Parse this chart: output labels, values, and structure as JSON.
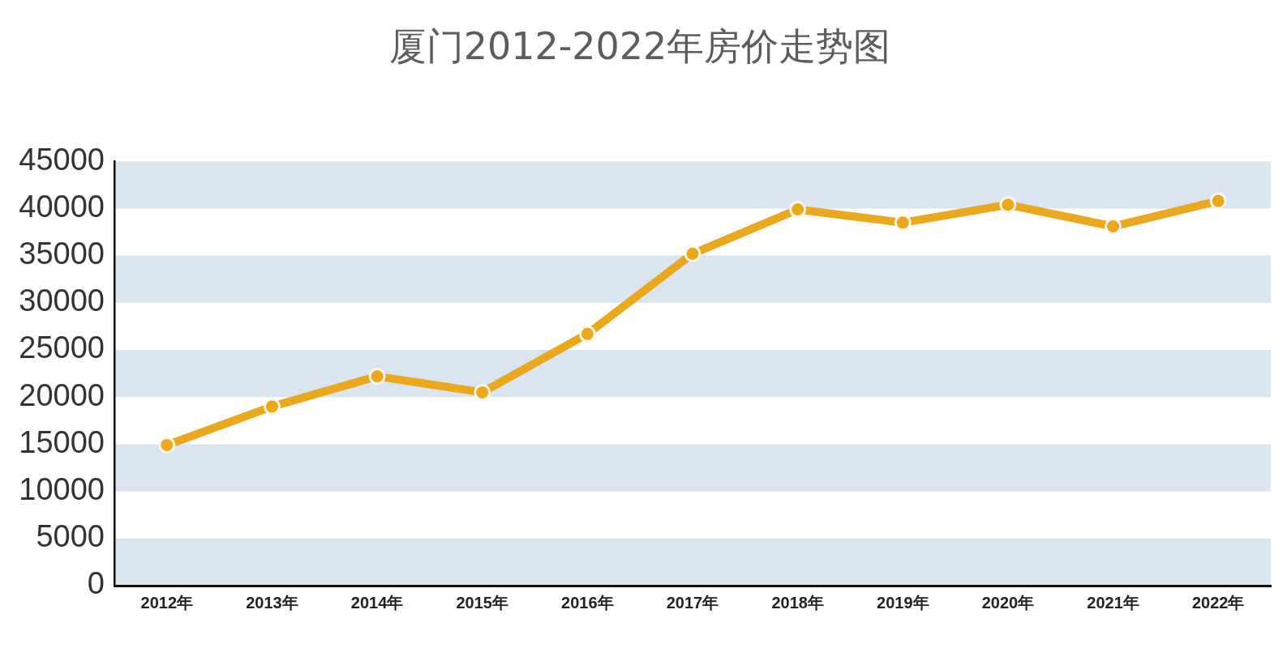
{
  "chart_data": {
    "type": "line",
    "title": "厦门2012-2022年房价走势图",
    "categories": [
      "2012年",
      "2013年",
      "2014年",
      "2015年",
      "2016年",
      "2017年",
      "2018年",
      "2019年",
      "2020年",
      "2021年",
      "2022年"
    ],
    "values": [
      14900,
      19000,
      22200,
      20500,
      26700,
      35200,
      39900,
      38500,
      40400,
      38100,
      40800
    ],
    "color": "#eba81e",
    "ylim": [
      0,
      45000
    ],
    "yticks": [
      0,
      5000,
      10000,
      15000,
      20000,
      25000,
      30000,
      35000,
      40000,
      45000
    ],
    "bands": [
      {
        "axis": "y",
        "from": 0,
        "to": 5000,
        "color": "#dae5f0"
      },
      {
        "axis": "y",
        "from": 10000,
        "to": 15000,
        "color": "#dae5f0"
      },
      {
        "axis": "y",
        "from": 20000,
        "to": 25000,
        "color": "#dae5f0"
      },
      {
        "axis": "y",
        "from": 30000,
        "to": 35000,
        "color": "#dae5f0"
      },
      {
        "axis": "y",
        "from": 40000,
        "to": 45000,
        "color": "#dae5f0"
      }
    ],
    "legend": false,
    "marker": "circle",
    "line_style": "solid"
  }
}
